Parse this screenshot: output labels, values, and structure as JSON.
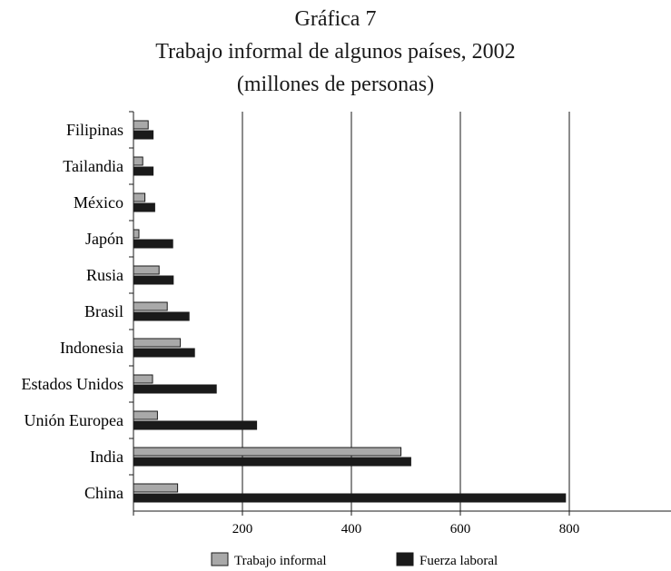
{
  "chart_data": {
    "type": "bar",
    "orientation": "horizontal",
    "title": [
      "Gráfica 7",
      "Trabajo informal de algunos países, 2002",
      "(millones de personas)"
    ],
    "xlabel": "",
    "ylabel": "",
    "xlim": [
      0,
      1000
    ],
    "xticks": [
      200,
      400,
      600,
      800
    ],
    "grid": "vertical",
    "legend_position": "bottom",
    "categories": [
      "Filipinas",
      "Tailandia",
      "México",
      "Japón",
      "Rusia",
      "Brasil",
      "Indonesia",
      "Estados Unidos",
      "Unión Europea",
      "India",
      "China"
    ],
    "series": [
      {
        "name": "Trabajo informal",
        "color": "#a9a9a9",
        "values": [
          27,
          17,
          21,
          10,
          47,
          62,
          86,
          35,
          44,
          491,
          81
        ]
      },
      {
        "name": "Fuerza laboral",
        "color": "#1a1a1a",
        "values": [
          36,
          36,
          39,
          72,
          73,
          102,
          112,
          152,
          226,
          509,
          793
        ]
      }
    ]
  }
}
